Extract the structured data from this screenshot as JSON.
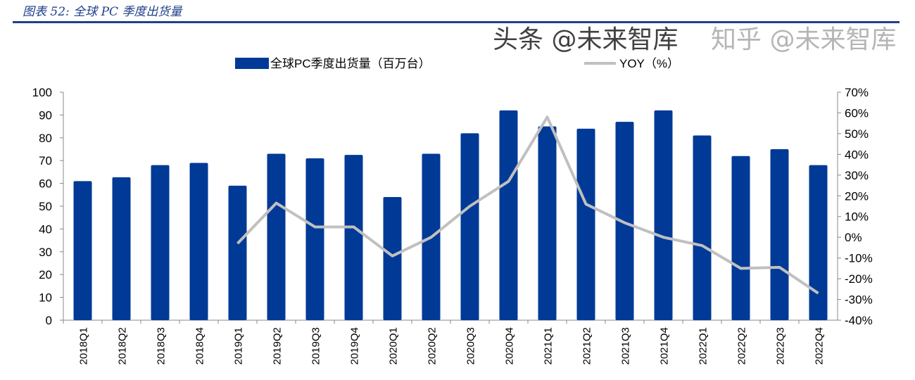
{
  "header": {
    "title": "图表 52:  全球 PC 季度出货量"
  },
  "chart_data": {
    "type": "bar",
    "title": "全球PC季度出货量",
    "categories": [
      "2018Q1",
      "2018Q2",
      "2018Q3",
      "2018Q4",
      "2019Q1",
      "2019Q2",
      "2019Q3",
      "2019Q4",
      "2020Q1",
      "2020Q2",
      "2020Q3",
      "2020Q4",
      "2021Q1",
      "2021Q2",
      "2021Q3",
      "2021Q4",
      "2022Q1",
      "2022Q2",
      "2022Q3",
      "2022Q4"
    ],
    "series": [
      {
        "name": "全球PC季度出货量（百万台）",
        "type": "bar",
        "axis": "left",
        "color": "#003a96",
        "values": [
          61,
          62.7,
          68,
          69,
          59,
          73,
          71,
          72.5,
          54,
          73,
          82,
          92,
          85,
          84,
          87,
          92,
          81,
          72,
          75,
          68
        ]
      },
      {
        "name": "YOY（%）",
        "type": "line",
        "axis": "right",
        "color": "#c0c0c0",
        "values": [
          null,
          null,
          null,
          null,
          -3,
          16.5,
          5,
          5,
          -9,
          0,
          15,
          27,
          58,
          16,
          7,
          0,
          -4,
          -15,
          -14.5,
          -27
        ]
      }
    ],
    "ylim": [
      0,
      100
    ],
    "yticks": [
      "0",
      "10",
      "20",
      "30",
      "40",
      "50",
      "60",
      "70",
      "80",
      "90",
      "100"
    ],
    "y2lim": [
      -40,
      70
    ],
    "y2ticks": [
      "-40%",
      "-30%",
      "-20%",
      "-10%",
      "0%",
      "10%",
      "20%",
      "30%",
      "40%",
      "50%",
      "60%",
      "70%"
    ],
    "legend": "top-center"
  },
  "watermarks": [
    "知乎 @未来智库",
    "头条 @未来智库"
  ]
}
